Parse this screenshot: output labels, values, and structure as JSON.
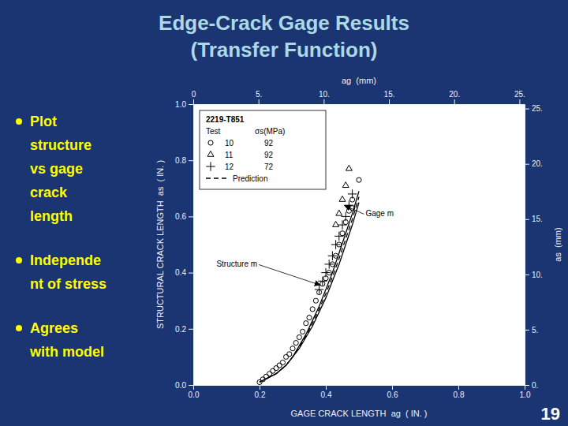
{
  "chart_data": {
    "type": "scatter",
    "title": "Edge-Crack Gage Results",
    "subtitle": "(Transfer Function)",
    "x_label": "GAGE CRACK LENGTH  ag  ( IN. )",
    "y_label": "STRUCTURAL CRACK LENGTH  as  ( IN. )",
    "x2_label": "ag  (mm)",
    "y2_label": "as  (mm)",
    "xlim": [
      0.0,
      1.0
    ],
    "ylim": [
      0.0,
      1.0
    ],
    "xticks": [
      {
        "value": 0.0,
        "label": "0.0"
      },
      0.2,
      0.4,
      0.6,
      0.8,
      {
        "value": 1.0,
        "label": "1.0"
      }
    ],
    "yticks": [
      {
        "value": 0.0,
        "label": "0.0"
      },
      0.2,
      0.4,
      0.6,
      0.8,
      {
        "value": 1.0,
        "label": "1.0"
      }
    ],
    "x2lim": [
      0,
      25.4
    ],
    "x2ticks": [
      0,
      {
        "value": 5,
        "label": "5."
      },
      {
        "value": 10,
        "label": "10."
      },
      {
        "value": 15,
        "label": "15."
      },
      {
        "value": 20,
        "label": "20."
      },
      {
        "value": 25,
        "label": "25."
      }
    ],
    "y2lim": [
      0,
      25.4
    ],
    "y2ticks": [
      {
        "value": 0,
        "label": "0."
      },
      {
        "value": 5,
        "label": "5."
      },
      {
        "value": 10,
        "label": "10."
      },
      {
        "value": 15,
        "label": "15."
      },
      {
        "value": 20,
        "label": "20."
      },
      {
        "value": 25,
        "label": "25."
      }
    ],
    "grid": false,
    "legend": "upper left",
    "legend_title": "2219-T851",
    "legend_columns": [
      "Test",
      "σs(MPa)"
    ],
    "series": [
      {
        "type": "line",
        "line_style": "solid",
        "color": "#000000",
        "x": [
          0.2,
          0.25,
          0.28,
          0.3,
          0.32,
          0.34,
          0.36,
          0.38,
          0.4,
          0.42,
          0.44,
          0.46,
          0.48,
          0.5
        ],
        "values": [
          0.01,
          0.04,
          0.07,
          0.1,
          0.13,
          0.17,
          0.21,
          0.26,
          0.31,
          0.37,
          0.43,
          0.5,
          0.57,
          0.65
        ]
      },
      {
        "type": "line",
        "line_style": "solid",
        "color": "#000000",
        "x": [
          0.2,
          0.25,
          0.28,
          0.3,
          0.32,
          0.34,
          0.36,
          0.38,
          0.4,
          0.42,
          0.44,
          0.46,
          0.48,
          0.5
        ],
        "values": [
          0.01,
          0.04,
          0.07,
          0.1,
          0.14,
          0.18,
          0.23,
          0.28,
          0.34,
          0.4,
          0.47,
          0.54,
          0.61,
          0.69
        ]
      },
      {
        "name": "Prediction",
        "type": "line",
        "line_style": "dashed",
        "color": "#000000",
        "x": [
          0.2,
          0.25,
          0.28,
          0.3,
          0.32,
          0.34,
          0.36,
          0.38,
          0.4,
          0.42,
          0.44,
          0.46,
          0.48,
          0.5
        ],
        "values": [
          0.01,
          0.04,
          0.07,
          0.1,
          0.135,
          0.175,
          0.22,
          0.27,
          0.325,
          0.385,
          0.45,
          0.52,
          0.59,
          0.67
        ]
      },
      {
        "type": "scatter",
        "marker": "circle",
        "color": "#000000",
        "legend_cells": [
          "10",
          "92"
        ],
        "x": [
          0.2,
          0.21,
          0.22,
          0.23,
          0.24,
          0.25,
          0.26,
          0.27,
          0.28,
          0.29,
          0.3,
          0.31,
          0.32,
          0.33,
          0.34,
          0.35,
          0.36,
          0.37,
          0.38,
          0.39,
          0.4,
          0.41,
          0.42,
          0.43,
          0.44,
          0.45,
          0.46,
          0.47,
          0.48
        ],
        "values": [
          0.01,
          0.02,
          0.03,
          0.04,
          0.05,
          0.06,
          0.07,
          0.08,
          0.1,
          0.11,
          0.13,
          0.15,
          0.17,
          0.19,
          0.22,
          0.24,
          0.27,
          0.3,
          0.33,
          0.36,
          0.38,
          0.4,
          0.43,
          0.46,
          0.5,
          0.54,
          0.58,
          0.62,
          0.66
        ]
      },
      {
        "type": "scatter",
        "marker": "circle",
        "color": "#000000",
        "x": [
          0.48,
          0.5
        ],
        "values": [
          0.63,
          0.73
        ]
      },
      {
        "type": "scatter",
        "marker": "triangle",
        "color": "#000000",
        "legend_cells": [
          "11",
          "92"
        ],
        "x": [
          0.43,
          0.44,
          0.45,
          0.46,
          0.47
        ],
        "values": [
          0.57,
          0.61,
          0.66,
          0.71,
          0.77
        ]
      },
      {
        "type": "scatter",
        "marker": "plus",
        "color": "#000000",
        "legend_cells": [
          "12",
          "72"
        ],
        "x": [
          0.38,
          0.39,
          0.4,
          0.41,
          0.42,
          0.43,
          0.44,
          0.45,
          0.46,
          0.47,
          0.48
        ],
        "values": [
          0.34,
          0.37,
          0.4,
          0.43,
          0.46,
          0.5,
          0.53,
          0.57,
          0.6,
          0.64,
          0.68
        ]
      }
    ],
    "annotations": [
      {
        "text": "Structure m",
        "x": 0.07,
        "y": 0.42,
        "arrow_x": 0.385,
        "arrow_y": 0.355
      },
      {
        "text": "Gage m",
        "x": 0.52,
        "y": 0.6,
        "arrow_x": 0.455,
        "arrow_y": 0.64
      }
    ]
  },
  "slide": {
    "background": "#1B3472",
    "title_color": "#ADD8E6",
    "plot_background": "#FFFFFF",
    "bullet_color": "#FFFF00",
    "bullets": [
      [
        "Plot",
        "structure",
        "vs gage",
        "crack",
        "length"
      ],
      [
        "Independe",
        "nt of stress"
      ],
      [
        "Agrees",
        "with model"
      ]
    ],
    "slide_number": "19",
    "slide_number_color": "#FFFFFF"
  }
}
